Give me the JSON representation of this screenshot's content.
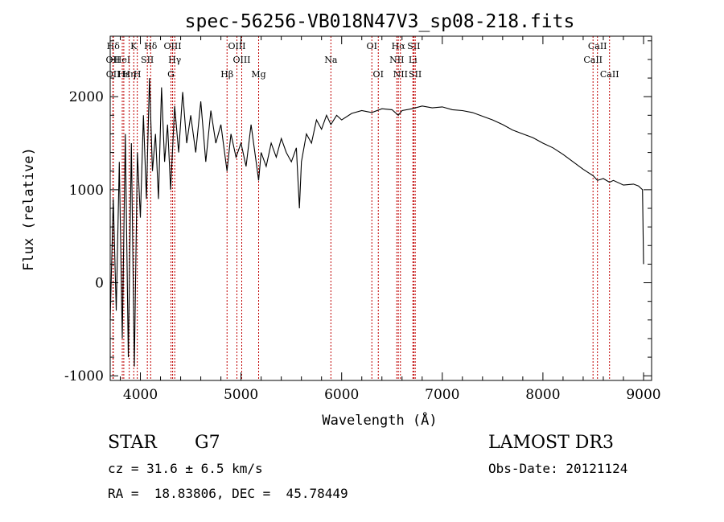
{
  "chart_data": {
    "type": "line",
    "title": "spec-56256-VB018N47V3_sp08-218.fits",
    "xlabel": "Wavelength (Å)",
    "ylabel": "Flux (relative)",
    "xlim": [
      3700,
      9080
    ],
    "ylim": [
      -1050,
      2650
    ],
    "xticks": [
      4000,
      5000,
      6000,
      7000,
      8000,
      9000
    ],
    "yticks": [
      -1000,
      0,
      1000,
      2000
    ],
    "xtick_labels": [
      "4000",
      "5000",
      "6000",
      "7000",
      "8000",
      "9000"
    ],
    "ytick_labels": [
      "-1000",
      "0",
      "1000",
      "2000"
    ],
    "series": [
      {
        "name": "flux",
        "x": [
          3700,
          3730,
          3760,
          3790,
          3820,
          3850,
          3880,
          3910,
          3940,
          3970,
          4000,
          4030,
          4060,
          4090,
          4120,
          4150,
          4180,
          4210,
          4240,
          4270,
          4300,
          4340,
          4380,
          4420,
          4460,
          4500,
          4550,
          4600,
          4650,
          4700,
          4750,
          4800,
          4861,
          4900,
          4950,
          5000,
          5050,
          5100,
          5150,
          5175,
          5200,
          5250,
          5300,
          5350,
          5400,
          5450,
          5500,
          5550,
          5580,
          5600,
          5650,
          5700,
          5750,
          5800,
          5850,
          5893,
          5950,
          6000,
          6100,
          6200,
          6300,
          6400,
          6500,
          6563,
          6600,
          6700,
          6800,
          6900,
          7000,
          7100,
          7200,
          7300,
          7400,
          7500,
          7600,
          7700,
          7800,
          7900,
          8000,
          8100,
          8200,
          8300,
          8400,
          8500,
          8542,
          8600,
          8662,
          8700,
          8800,
          8900,
          8950,
          8990,
          9000
        ],
        "y": [
          -400,
          900,
          -300,
          1300,
          -600,
          1600,
          -800,
          1500,
          -900,
          1400,
          700,
          1800,
          900,
          2200,
          1200,
          1600,
          900,
          2100,
          1300,
          1700,
          1000,
          1900,
          1400,
          2050,
          1500,
          1800,
          1400,
          1950,
          1300,
          1850,
          1500,
          1700,
          1200,
          1600,
          1350,
          1500,
          1250,
          1700,
          1300,
          1100,
          1400,
          1250,
          1500,
          1350,
          1550,
          1400,
          1300,
          1450,
          800,
          1300,
          1600,
          1500,
          1750,
          1650,
          1800,
          1700,
          1800,
          1750,
          1820,
          1850,
          1830,
          1870,
          1860,
          1800,
          1850,
          1870,
          1900,
          1880,
          1890,
          1860,
          1850,
          1830,
          1790,
          1750,
          1700,
          1640,
          1600,
          1560,
          1500,
          1450,
          1380,
          1300,
          1220,
          1150,
          1100,
          1120,
          1080,
          1100,
          1050,
          1060,
          1040,
          1000,
          200
        ]
      }
    ],
    "line_marks": [
      {
        "label": "Hδ",
        "x": 3730,
        "row": 1
      },
      {
        "label": "OII",
        "x": 3727,
        "row": 2
      },
      {
        "label": "OII",
        "x": 3729,
        "row": 3
      },
      {
        "label": "HeI",
        "x": 3820,
        "row": 2
      },
      {
        "label": "Hε",
        "x": 3835,
        "row": 3
      },
      {
        "label": "Hη",
        "x": 3889,
        "row": 3
      },
      {
        "label": "K",
        "x": 3934,
        "row": 1
      },
      {
        "label": "SII",
        "x": 4069,
        "row": 2
      },
      {
        "label": "H",
        "x": 3969,
        "row": 3
      },
      {
        "label": "Hδ",
        "x": 4102,
        "row": 1
      },
      {
        "label": "OIII",
        "x": 4320,
        "row": 1
      },
      {
        "label": "Hγ",
        "x": 4341,
        "row": 2
      },
      {
        "label": "G",
        "x": 4304,
        "row": 3
      },
      {
        "label": "Hβ",
        "x": 4861,
        "row": 3
      },
      {
        "label": "OIII",
        "x": 4959,
        "row": 1
      },
      {
        "label": "OIII",
        "x": 5007,
        "row": 2
      },
      {
        "label": "Mg",
        "x": 5175,
        "row": 3
      },
      {
        "label": "Na",
        "x": 5893,
        "row": 2
      },
      {
        "label": "OI",
        "x": 6300,
        "row": 1
      },
      {
        "label": "OI",
        "x": 6364,
        "row": 3
      },
      {
        "label": "Hα",
        "x": 6563,
        "row": 1
      },
      {
        "label": "NII",
        "x": 6548,
        "row": 2
      },
      {
        "label": "NII",
        "x": 6584,
        "row": 3
      },
      {
        "label": "SII",
        "x": 6717,
        "row": 1
      },
      {
        "label": "Li",
        "x": 6708,
        "row": 2
      },
      {
        "label": "SII",
        "x": 6731,
        "row": 3
      },
      {
        "label": "CaII",
        "x": 8542,
        "row": 1
      },
      {
        "label": "CaII",
        "x": 8498,
        "row": 2
      },
      {
        "label": "CaII",
        "x": 8662,
        "row": 3
      }
    ],
    "line_mark_color": "#c00000"
  },
  "info": {
    "class_label": "STAR",
    "subclass": "G7",
    "survey": "LAMOST DR3",
    "redshift_line": "cz = 31.6 ± 6.5 km/s",
    "obs_date_line": "Obs-Date: 20121124",
    "coords_line": "RA =  18.83806, DEC =  45.78449"
  }
}
